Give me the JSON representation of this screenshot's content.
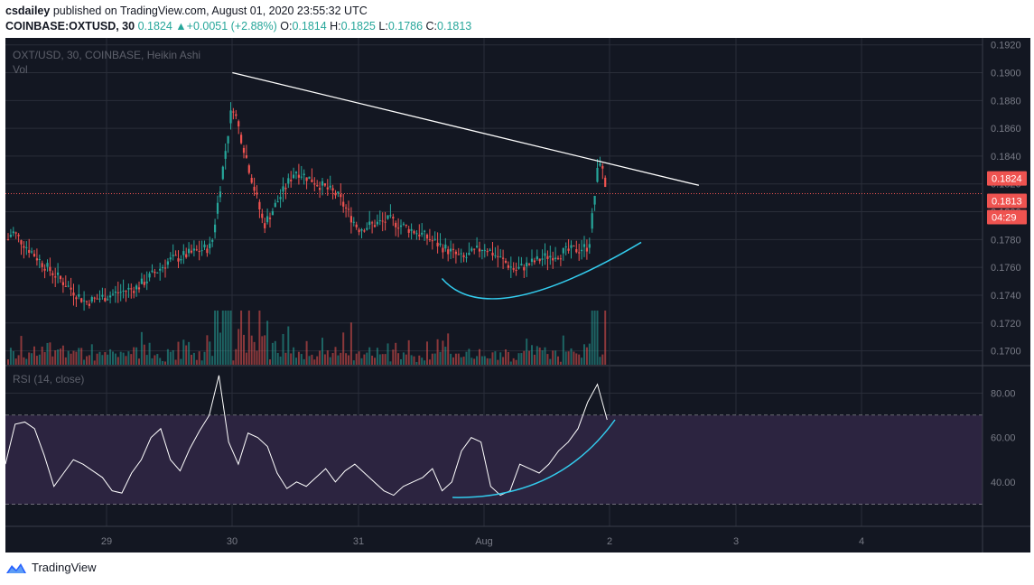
{
  "header": {
    "author": "csdailey",
    "published_text": "published on TradingView.com, August 01, 2020 23:55:32 UTC",
    "symbol": "COINBASE:OXTUSD, 30",
    "last": "0.1824",
    "change_arrow": "▲",
    "change": "+0.0051 (+2.88%)",
    "o_label": "O:",
    "o": "0.1814",
    "h_label": "H:",
    "h": "0.1825",
    "l_label": "L:",
    "l": "0.1786",
    "c_label": "C:",
    "c": "0.1813"
  },
  "footer": {
    "brand": "TradingView"
  },
  "colors": {
    "bg": "#131722",
    "up": "#26a69a",
    "down": "#ef5350",
    "rsi_line": "#ffffff",
    "rsi_band": "#2c2440",
    "annotation_arc": "#33ccee",
    "trendline": "#ffffff",
    "price_line": "#ef5350"
  },
  "chart_data": [
    {
      "type": "candlestick",
      "title": "OXT/USD, 30, COINBASE, Heikin Ashi",
      "volume_label": "Vol",
      "x_ticks": [
        "29",
        "30",
        "31",
        "Aug",
        "2",
        "3",
        "4"
      ],
      "y_ticks": [
        "0.1920",
        "0.1900",
        "0.1880",
        "0.1860",
        "0.1840",
        "0.1820",
        "0.1800",
        "0.1780",
        "0.1760",
        "0.1740",
        "0.1720",
        "0.1700"
      ],
      "ylim": [
        0.169,
        0.1925
      ],
      "price_labels": {
        "current": "0.1824",
        "close": "0.1813",
        "countdown": "04:29"
      },
      "key_points": [
        {
          "x": "28 00:00",
          "y": 0.1742
        },
        {
          "x": "28 06:00",
          "y": 0.1786
        },
        {
          "x": "28 12:00",
          "y": 0.1762
        },
        {
          "x": "28 20:00",
          "y": 0.1735
        },
        {
          "x": "29 06:00",
          "y": 0.1746
        },
        {
          "x": "29 12:00",
          "y": 0.1765
        },
        {
          "x": "29 20:00",
          "y": 0.1775
        },
        {
          "x": "30 00:00",
          "y": 0.1878
        },
        {
          "x": "30 06:00",
          "y": 0.179
        },
        {
          "x": "30 12:00",
          "y": 0.183
        },
        {
          "x": "30 20:00",
          "y": 0.1812
        },
        {
          "x": "31 00:00",
          "y": 0.1788
        },
        {
          "x": "31 06:00",
          "y": 0.1794
        },
        {
          "x": "31 12:00",
          "y": 0.1784
        },
        {
          "x": "31 20:00",
          "y": 0.1766
        },
        {
          "x": "Aug 00:00",
          "y": 0.1775
        },
        {
          "x": "Aug 06:00",
          "y": 0.1758
        },
        {
          "x": "Aug 12:00",
          "y": 0.1768
        },
        {
          "x": "Aug 20:00",
          "y": 0.1775
        },
        {
          "x": "Aug 22:00",
          "y": 0.184
        },
        {
          "x": "Aug 23:30",
          "y": 0.1813
        }
      ],
      "annotations": [
        {
          "type": "trendline",
          "from": {
            "x": "30 00:00",
            "y": 0.19
          },
          "to": {
            "x": "2 17:00",
            "y": 0.1819
          }
        },
        {
          "type": "arc",
          "from": {
            "x": "31 16:00",
            "y": 0.1752
          },
          "through": {
            "x": "Aug 06:00",
            "y": 0.1741
          },
          "to": {
            "x": "2 06:00",
            "y": 0.1778
          }
        }
      ]
    },
    {
      "type": "line",
      "title": "RSI (14, close)",
      "y_ticks": [
        "80.00",
        "60.00",
        "40.00"
      ],
      "ylim": [
        20,
        92
      ],
      "band": [
        30,
        70
      ],
      "values": [
        48,
        66,
        67,
        64,
        52,
        38,
        44,
        50,
        48,
        45,
        42,
        36,
        35,
        44,
        50,
        60,
        64,
        50,
        45,
        55,
        63,
        70,
        88,
        58,
        48,
        62,
        60,
        56,
        44,
        37,
        40,
        38,
        42,
        46,
        40,
        45,
        48,
        44,
        40,
        36,
        34,
        38,
        40,
        42,
        46,
        36,
        40,
        54,
        60,
        58,
        38,
        34,
        36,
        48,
        46,
        44,
        48,
        54,
        58,
        64,
        76,
        84,
        68
      ],
      "annotations": [
        {
          "type": "arc",
          "from": {
            "x": "31 18:00",
            "y": 33
          },
          "to": {
            "x": "2 01:00",
            "y": 68
          }
        }
      ]
    }
  ]
}
